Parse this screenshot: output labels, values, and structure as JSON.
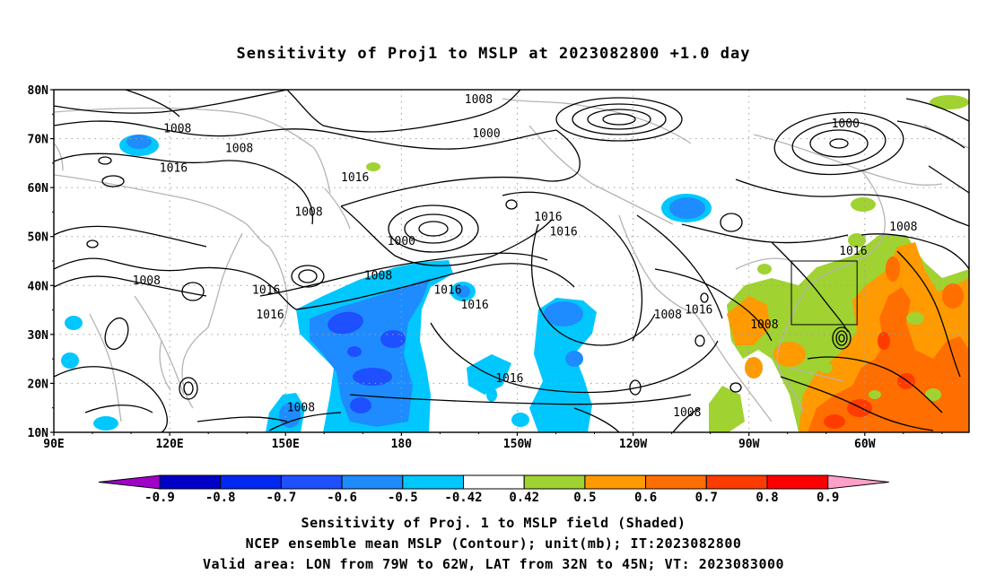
{
  "title": "Sensitivity of Proj1 to MSLP at 2023082800 +1.0 day",
  "map": {
    "lat_labels": [
      "80N",
      "70N",
      "60N",
      "50N",
      "40N",
      "30N",
      "20N",
      "10N"
    ],
    "lon_labels": [
      "90E",
      "120E",
      "150E",
      "180",
      "150W",
      "120W",
      "90W",
      "60W"
    ],
    "contour_labels": [
      {
        "text": "1008",
        "lon": 122,
        "lat": 72
      },
      {
        "text": "1008",
        "lon": 138,
        "lat": 68
      },
      {
        "text": "1016",
        "lon": 121,
        "lat": 64
      },
      {
        "text": "1008",
        "lon": 200,
        "lat": 78
      },
      {
        "text": "1000",
        "lon": 202,
        "lat": 71
      },
      {
        "text": "1000",
        "lon": 295,
        "lat": 73
      },
      {
        "text": "1016",
        "lon": 168,
        "lat": 62
      },
      {
        "text": "1008",
        "lon": 156,
        "lat": 55
      },
      {
        "text": "1016",
        "lon": 218,
        "lat": 54
      },
      {
        "text": "1016",
        "lon": 222,
        "lat": 51
      },
      {
        "text": "1000",
        "lon": 180,
        "lat": 49
      },
      {
        "text": "1008",
        "lon": 174,
        "lat": 42
      },
      {
        "text": "1008",
        "lon": 114,
        "lat": 41
      },
      {
        "text": "1016",
        "lon": 145,
        "lat": 39
      },
      {
        "text": "1016",
        "lon": 146,
        "lat": 34
      },
      {
        "text": "1016",
        "lon": 199,
        "lat": 36
      },
      {
        "text": "1016",
        "lon": 192,
        "lat": 39
      },
      {
        "text": "1008",
        "lon": 249,
        "lat": 34
      },
      {
        "text": "1016",
        "lon": 257,
        "lat": 35
      },
      {
        "text": "1008",
        "lon": 274,
        "lat": 32
      },
      {
        "text": "1016",
        "lon": 297,
        "lat": 47
      },
      {
        "text": "1008",
        "lon": 310,
        "lat": 52
      },
      {
        "text": "1016",
        "lon": 208,
        "lat": 21
      },
      {
        "text": "1008",
        "lon": 154,
        "lat": 15
      },
      {
        "text": "1008",
        "lon": 254,
        "lat": 14
      }
    ],
    "valid_box": {
      "lon_min": 281,
      "lon_max": 298,
      "lat_min": 32,
      "lat_max": 45
    },
    "colors": {
      "coast": "#b4b4b4",
      "grid": "#a0a0a0",
      "contour": "#000000"
    }
  },
  "colorbar": {
    "labels": [
      "-0.9",
      "-0.8",
      "-0.7",
      "-0.6",
      "-0.5",
      "-0.42",
      "0.42",
      "0.5",
      "0.6",
      "0.7",
      "0.8",
      "0.9"
    ],
    "colors": [
      "#a000c8",
      "#0000c8",
      "#0028f0",
      "#1e50ff",
      "#1e8cff",
      "#00c8ff",
      "#ffffff",
      "#a0d232",
      "#ff9a00",
      "#ff6e00",
      "#ff3c00",
      "#ff0000",
      "#ffa0c8"
    ]
  },
  "captions": {
    "line1": "Sensitivity of Proj. 1 to MSLP field (Shaded)",
    "line2": "NCEP ensemble mean MSLP (Contour); unit(mb); IT:2023082800",
    "line3": "Valid area: LON from 79W to 62W, LAT from 32N to 45N; VT: 2023083000"
  }
}
